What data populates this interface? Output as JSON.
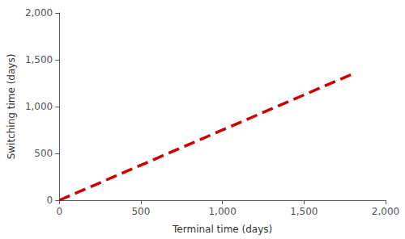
{
  "chart_data": {
    "type": "line",
    "x": [
      0,
      1800
    ],
    "values": [
      0,
      1350
    ],
    "color": "#cc0000",
    "line_style": "dashed",
    "xlim": [
      0,
      2000
    ],
    "ylim": [
      0,
      2000
    ],
    "xticks": [
      0,
      500,
      {
        "value": 1000,
        "label": "1,000"
      },
      {
        "value": 1500,
        "label": "1,500"
      },
      {
        "value": 2000,
        "label": "2,000"
      }
    ],
    "yticks": [
      0,
      500,
      {
        "value": 1000,
        "label": "1,000"
      },
      {
        "value": 1500,
        "label": "1,500"
      },
      {
        "value": 2000,
        "label": "2,000"
      }
    ],
    "xlabel": "Terminal time (days)",
    "ylabel": "Switching time (days)",
    "grid": false
  }
}
